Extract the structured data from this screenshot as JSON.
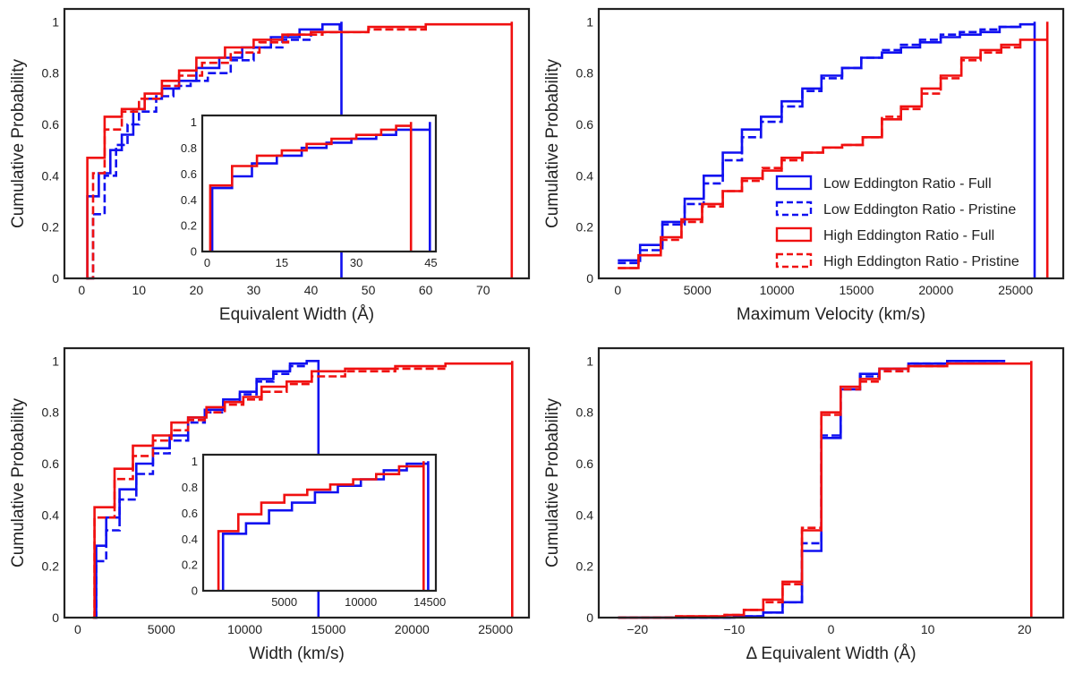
{
  "colors": {
    "low": "#1010f0",
    "high": "#f01010",
    "axis": "#222222"
  },
  "chart_data": [
    {
      "id": "ew",
      "type": "line",
      "drawstyle": "steps-post",
      "xlabel": "Equivalent Width (Å)",
      "ylabel": "Cumulative Probability",
      "xlim": [
        -3,
        78
      ],
      "ylim": [
        0,
        1.05
      ],
      "xticks": [
        0,
        10,
        20,
        30,
        40,
        50,
        60,
        70
      ],
      "yticks": [
        0.0,
        0.2,
        0.4,
        0.6,
        0.8,
        1.0
      ],
      "series": [
        {
          "name": "Low Eddington Ratio - Full",
          "style": "solid",
          "color": "low",
          "x": [
            0.8,
            1,
            3,
            5,
            7,
            9,
            11,
            14,
            17,
            20,
            24,
            28,
            33,
            38,
            42,
            45.3,
            45.3
          ],
          "y": [
            0,
            0.32,
            0.41,
            0.5,
            0.56,
            0.66,
            0.7,
            0.74,
            0.77,
            0.82,
            0.86,
            0.9,
            0.94,
            0.97,
            0.99,
            1.0,
            0
          ]
        },
        {
          "name": "Low Eddington Ratio - Pristine",
          "style": "dashed",
          "color": "low",
          "x": [
            1,
            2,
            4,
            6,
            8,
            10,
            13,
            16,
            19,
            22,
            26,
            30,
            35,
            40,
            45
          ],
          "y": [
            0,
            0.25,
            0.4,
            0.52,
            0.6,
            0.65,
            0.71,
            0.75,
            0.77,
            0.8,
            0.85,
            0.9,
            0.93,
            0.96,
            0.99
          ]
        },
        {
          "name": "High Eddington Ratio - Full",
          "style": "solid",
          "color": "high",
          "x": [
            0.8,
            1,
            4,
            7,
            11,
            14,
            17,
            20,
            25,
            30,
            35,
            40,
            50,
            60,
            75,
            75
          ],
          "y": [
            0,
            0.47,
            0.63,
            0.66,
            0.72,
            0.77,
            0.81,
            0.86,
            0.9,
            0.93,
            0.95,
            0.96,
            0.98,
            0.99,
            1.0,
            0
          ]
        },
        {
          "name": "High Eddington Ratio - Pristine",
          "style": "dashed",
          "color": "high",
          "x": [
            1,
            2,
            4,
            7,
            10,
            14,
            17,
            21,
            26,
            31,
            36,
            42,
            50,
            60
          ],
          "y": [
            0,
            0.41,
            0.58,
            0.65,
            0.7,
            0.75,
            0.79,
            0.84,
            0.88,
            0.92,
            0.95,
            0.96,
            0.97,
            0.98
          ]
        }
      ],
      "inset": {
        "xlim": [
          -1,
          46
        ],
        "ylim": [
          0,
          1.05
        ],
        "xticks": [
          0,
          15,
          30,
          45
        ],
        "yticks": [
          0.0,
          0.2,
          0.4,
          0.6,
          0.8,
          1.0
        ],
        "series": [
          {
            "color": "low",
            "x": [
              1,
              1,
              5,
              9,
              14,
              19,
              24,
              29,
              34,
              38,
              44.8,
              44.8
            ],
            "y": [
              0,
              0.49,
              0.58,
              0.68,
              0.74,
              0.8,
              0.84,
              0.87,
              0.9,
              0.94,
              1.0,
              0
            ]
          },
          {
            "color": "high",
            "x": [
              0.6,
              0.6,
              5,
              10,
              15,
              20,
              25,
              30,
              35,
              38,
              41,
              41
            ],
            "y": [
              0,
              0.51,
              0.66,
              0.74,
              0.78,
              0.83,
              0.87,
              0.9,
              0.94,
              0.97,
              1.0,
              0
            ]
          }
        ]
      }
    },
    {
      "id": "vmax",
      "type": "line",
      "drawstyle": "steps-post",
      "xlabel": "Maximum Velocity (km/s)",
      "ylabel": "Cumulative Probability",
      "xlim": [
        -1200,
        28000
      ],
      "ylim": [
        0,
        1.05
      ],
      "xticks": [
        0,
        5000,
        10000,
        15000,
        20000,
        25000
      ],
      "yticks": [
        0.0,
        0.2,
        0.4,
        0.6,
        0.8,
        1.0
      ],
      "legend_loc": "lower-right",
      "series": [
        {
          "name": "Low Eddington Ratio - Full",
          "style": "solid",
          "color": "low",
          "x": [
            0,
            1400,
            2800,
            4200,
            5400,
            6600,
            7800,
            9000,
            10300,
            11600,
            12800,
            14100,
            15300,
            16600,
            17800,
            19000,
            20300,
            21500,
            22800,
            24000,
            25300,
            26200,
            26200
          ],
          "y": [
            0.07,
            0.13,
            0.22,
            0.31,
            0.4,
            0.49,
            0.58,
            0.63,
            0.69,
            0.74,
            0.79,
            0.82,
            0.86,
            0.88,
            0.9,
            0.92,
            0.94,
            0.95,
            0.96,
            0.98,
            0.99,
            1.0,
            0
          ]
        },
        {
          "name": "Low Eddington Ratio - Pristine",
          "style": "dashed",
          "color": "low",
          "x": [
            0,
            1400,
            2800,
            4200,
            5400,
            6600,
            7800,
            9000,
            10300,
            11600,
            12800,
            14100,
            15300,
            16600,
            17800,
            19000,
            20300,
            21500,
            22800,
            24000,
            25300
          ],
          "y": [
            0.06,
            0.11,
            0.21,
            0.29,
            0.37,
            0.46,
            0.55,
            0.61,
            0.67,
            0.73,
            0.78,
            0.82,
            0.86,
            0.89,
            0.91,
            0.93,
            0.95,
            0.96,
            0.97,
            0.98,
            0.99
          ]
        },
        {
          "name": "High Eddington Ratio - Full",
          "style": "solid",
          "color": "high",
          "x": [
            0,
            1300,
            2700,
            4000,
            5300,
            6600,
            7800,
            9100,
            10300,
            11600,
            12900,
            14100,
            15400,
            16600,
            17800,
            19100,
            20300,
            21600,
            22800,
            24100,
            25300,
            27000,
            27000
          ],
          "y": [
            0.04,
            0.09,
            0.16,
            0.23,
            0.29,
            0.34,
            0.39,
            0.42,
            0.47,
            0.49,
            0.51,
            0.52,
            0.55,
            0.62,
            0.67,
            0.74,
            0.79,
            0.86,
            0.89,
            0.91,
            0.93,
            1.0,
            0
          ]
        },
        {
          "name": "High Eddington Ratio - Pristine",
          "style": "dashed",
          "color": "high",
          "x": [
            0,
            1300,
            2700,
            4000,
            5300,
            6600,
            7800,
            9100,
            10300,
            11600,
            12900,
            14100,
            15400,
            16600,
            17800,
            19100,
            20300,
            21600,
            22800,
            24100,
            25300
          ],
          "y": [
            0.04,
            0.09,
            0.15,
            0.22,
            0.28,
            0.34,
            0.38,
            0.43,
            0.46,
            0.49,
            0.51,
            0.52,
            0.55,
            0.63,
            0.66,
            0.72,
            0.78,
            0.85,
            0.88,
            0.9,
            0.92
          ]
        }
      ]
    },
    {
      "id": "width",
      "type": "line",
      "drawstyle": "steps-post",
      "xlabel": "Width (km/s)",
      "ylabel": "Cumulative Probability",
      "xlim": [
        -800,
        27000
      ],
      "ylim": [
        0,
        1.05
      ],
      "xticks": [
        0,
        5000,
        10000,
        15000,
        20000,
        25000
      ],
      "yticks": [
        0.0,
        0.2,
        0.4,
        0.6,
        0.8,
        1.0
      ],
      "series": [
        {
          "name": "Low Eddington Ratio - Full",
          "style": "solid",
          "color": "low",
          "x": [
            1000,
            1100,
            1700,
            2500,
            3500,
            4500,
            5500,
            6600,
            7600,
            8700,
            9700,
            10700,
            11700,
            12700,
            13700,
            14400,
            14400
          ],
          "y": [
            0,
            0.28,
            0.39,
            0.5,
            0.6,
            0.66,
            0.71,
            0.78,
            0.81,
            0.85,
            0.88,
            0.93,
            0.96,
            0.99,
            1.0,
            1.0,
            0
          ]
        },
        {
          "name": "Low Eddington Ratio - Pristine",
          "style": "dashed",
          "color": "low",
          "x": [
            1000,
            1100,
            1700,
            2500,
            3500,
            4500,
            5500,
            6600,
            7600,
            8700,
            9700,
            10700,
            11700,
            12700,
            13700
          ],
          "y": [
            0,
            0.22,
            0.34,
            0.46,
            0.56,
            0.64,
            0.69,
            0.76,
            0.8,
            0.84,
            0.87,
            0.92,
            0.95,
            0.98,
            0.99
          ]
        },
        {
          "name": "High Eddington Ratio - Full",
          "style": "solid",
          "color": "high",
          "x": [
            900,
            1000,
            2200,
            3300,
            4500,
            5600,
            6600,
            7700,
            8800,
            9900,
            11000,
            12500,
            14000,
            16000,
            19000,
            22000,
            26000,
            26000
          ],
          "y": [
            0,
            0.43,
            0.58,
            0.67,
            0.71,
            0.76,
            0.78,
            0.82,
            0.84,
            0.86,
            0.9,
            0.92,
            0.96,
            0.97,
            0.98,
            0.99,
            1.0,
            0
          ]
        },
        {
          "name": "High Eddington Ratio - Pristine",
          "style": "dashed",
          "color": "high",
          "x": [
            900,
            1000,
            2200,
            3300,
            4500,
            5600,
            6600,
            7700,
            8800,
            9900,
            11000,
            12500,
            14000,
            16000,
            19000,
            22000
          ],
          "y": [
            0,
            0.39,
            0.54,
            0.63,
            0.69,
            0.73,
            0.77,
            0.8,
            0.83,
            0.85,
            0.88,
            0.91,
            0.94,
            0.96,
            0.97,
            0.98
          ]
        }
      ],
      "inset": {
        "xlim": [
          -300,
          14900
        ],
        "ylim": [
          0,
          1.05
        ],
        "xticks": [
          5000,
          10000,
          14500
        ],
        "yticks": [
          0.0,
          0.2,
          0.4,
          0.6,
          0.8,
          1.0
        ],
        "series": [
          {
            "color": "low",
            "x": [
              1000,
              1000,
              2500,
              4000,
              5500,
              7000,
              8500,
              10000,
              11500,
              13000,
              14400,
              14400
            ],
            "y": [
              0,
              0.44,
              0.52,
              0.62,
              0.68,
              0.76,
              0.81,
              0.86,
              0.93,
              0.98,
              1.0,
              0
            ]
          },
          {
            "color": "high",
            "x": [
              700,
              700,
              2000,
              3500,
              5000,
              6500,
              8000,
              9500,
              11000,
              12500,
              14100,
              14100
            ],
            "y": [
              0,
              0.46,
              0.59,
              0.68,
              0.74,
              0.78,
              0.82,
              0.86,
              0.9,
              0.96,
              1.0,
              0
            ]
          }
        ]
      }
    },
    {
      "id": "dew",
      "type": "line",
      "drawstyle": "steps-post",
      "xlabel": "Δ Equivalent Width (Å)",
      "ylabel": "Cumulative Probability",
      "xlim": [
        -24,
        24
      ],
      "ylim": [
        0,
        1.05
      ],
      "xticks": [
        -20,
        -10,
        0,
        10,
        20
      ],
      "yticks": [
        0.0,
        0.2,
        0.4,
        0.6,
        0.8,
        1.0
      ],
      "series": [
        {
          "name": "Low Eddington Ratio - Full",
          "style": "solid",
          "color": "low",
          "x": [
            -22,
            -10,
            -7,
            -5,
            -3,
            -1,
            1,
            3,
            5,
            8,
            12,
            18
          ],
          "y": [
            0.0,
            0.005,
            0.02,
            0.06,
            0.26,
            0.7,
            0.89,
            0.95,
            0.97,
            0.99,
            1.0,
            1.0
          ]
        },
        {
          "name": "Low Eddington Ratio - Pristine",
          "style": "dashed",
          "color": "low",
          "x": [
            -22,
            -10,
            -7,
            -5,
            -3,
            -1,
            1,
            3,
            5,
            8,
            12,
            18
          ],
          "y": [
            0.0,
            0.005,
            0.02,
            0.06,
            0.29,
            0.71,
            0.89,
            0.94,
            0.97,
            0.99,
            1.0,
            1.0
          ]
        },
        {
          "name": "High Eddington Ratio - Full",
          "style": "solid",
          "color": "high",
          "x": [
            -22,
            -16,
            -11,
            -9,
            -7,
            -5,
            -3,
            -1,
            1,
            3,
            5,
            8,
            12,
            20.7,
            20.7
          ],
          "y": [
            0.0,
            0.005,
            0.01,
            0.03,
            0.07,
            0.14,
            0.34,
            0.8,
            0.9,
            0.93,
            0.97,
            0.98,
            0.99,
            1.0,
            0
          ]
        },
        {
          "name": "High Eddington Ratio - Pristine",
          "style": "dashed",
          "color": "high",
          "x": [
            -22,
            -16,
            -11,
            -9,
            -7,
            -5,
            -3,
            -1,
            1,
            3,
            5,
            8,
            12
          ],
          "y": [
            0.0,
            0.005,
            0.01,
            0.03,
            0.06,
            0.13,
            0.35,
            0.79,
            0.89,
            0.92,
            0.96,
            0.98,
            0.99
          ]
        }
      ]
    }
  ]
}
